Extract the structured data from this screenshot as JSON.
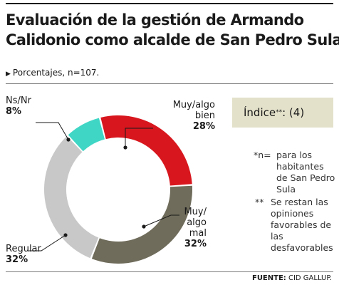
{
  "title": {
    "line1": "Evaluación de la gestión de Armando",
    "line2": "Calidonio como alcalde de San Pedro Sula"
  },
  "subtitle": "Porcentajes, n=107.",
  "index_box": {
    "label": "Índice",
    "marks": "**",
    "value": ": (4)"
  },
  "notes": [
    {
      "mark": "*n=",
      "text": "para los habitantes de San Pedro Sula"
    },
    {
      "mark": "**",
      "text": "Se restan las opiniones favorables de las desfavorables"
    }
  ],
  "source": {
    "label": "FUENTE:",
    "text": "CID GALLUP."
  },
  "chart_data": {
    "type": "pie",
    "donut": true,
    "slices": [
      {
        "label": "Muy/algo bien",
        "label_lines": [
          "Muy/algo",
          "bien"
        ],
        "value": 28,
        "pct_text": "28%",
        "color": "#d8161d"
      },
      {
        "label": "Muy/algo mal",
        "label_lines": [
          "Muy/",
          "algo",
          "mal"
        ],
        "value": 32,
        "pct_text": "32%",
        "color": "#6f6c5b"
      },
      {
        "label": "Regular",
        "label_lines": [
          "Regular"
        ],
        "value": 32,
        "pct_text": "32%",
        "color": "#c8c8c8"
      },
      {
        "label": "Ns/Nr",
        "label_lines": [
          "Ns/Nr"
        ],
        "value": 8,
        "pct_text": "8%",
        "color": "#3fd6c5"
      }
    ]
  }
}
